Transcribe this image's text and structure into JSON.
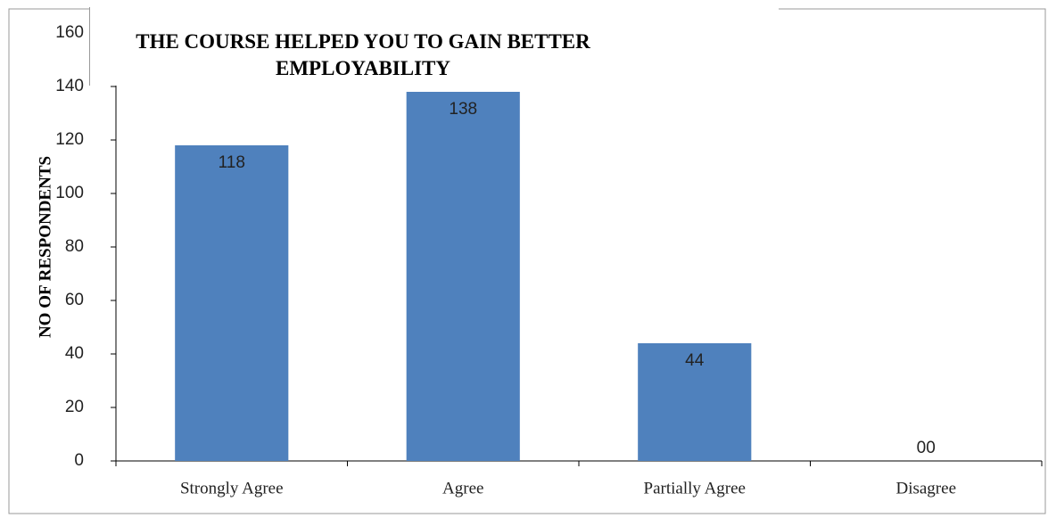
{
  "chart_data": {
    "type": "bar",
    "title": "THE COURSE HELPED YOU TO GAIN BETTER EMPLOYABILITY",
    "y_label": "NO OF RESPONDENTS",
    "categories": [
      "Strongly Agree",
      "Agree",
      "Partially Agree",
      "Disagree"
    ],
    "values": [
      118,
      138,
      44,
      0
    ],
    "value_labels": [
      "118",
      "138",
      "44",
      "00"
    ],
    "color": "#4f81bd",
    "ylim": [
      0,
      160
    ],
    "yticks": [
      0,
      20,
      40,
      60,
      80,
      100,
      120,
      140,
      160
    ],
    "grid": false
  }
}
